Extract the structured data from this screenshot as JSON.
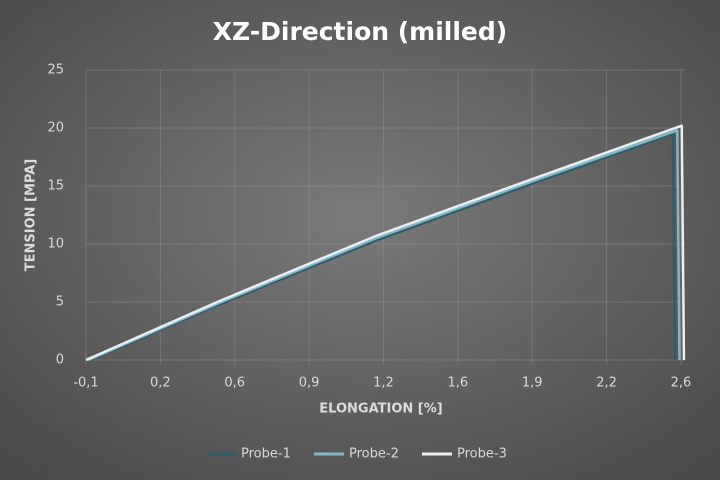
{
  "chart_data": {
    "type": "line",
    "title": "XZ-Direction (milled)",
    "x_label": "ELONGATION [%]",
    "y_label": "TENSION [MPA]",
    "xlim": [
      -0.1,
      2.5667
    ],
    "ylim": [
      0,
      25
    ],
    "xticks": [
      {
        "value": -0.1,
        "label": "-0,1"
      },
      {
        "value": 0.2333,
        "label": "0,2"
      },
      {
        "value": 0.5667,
        "label": "0,6"
      },
      {
        "value": 0.9,
        "label": "0,9"
      },
      {
        "value": 1.2333,
        "label": "1,2"
      },
      {
        "value": 1.5667,
        "label": "1,6"
      },
      {
        "value": 1.9,
        "label": "1,9"
      },
      {
        "value": 2.2333,
        "label": "2,2"
      },
      {
        "value": 2.5667,
        "label": "2,6"
      }
    ],
    "yticks": [
      0,
      5,
      10,
      15,
      20,
      25
    ],
    "grid": true,
    "legend": "bottom",
    "series": [
      {
        "name": "Probe-1",
        "color": "#2f5d6e",
        "x": [
          -0.08,
          0.5,
          1.2,
          1.9,
          2.53,
          2.54
        ],
        "values": [
          0,
          4.8,
          10.3,
          15.2,
          19.5,
          0
        ]
      },
      {
        "name": "Probe-2",
        "color": "#7fb9ca",
        "x": [
          -0.09,
          0.5,
          1.2,
          1.9,
          2.55,
          2.56
        ],
        "values": [
          0,
          4.95,
          10.5,
          15.4,
          19.8,
          0
        ]
      },
      {
        "name": "Probe-3",
        "color": "#ececec",
        "x": [
          -0.1,
          0.5,
          1.2,
          1.9,
          2.57,
          2.58
        ],
        "values": [
          0,
          5.1,
          10.7,
          15.6,
          20.2,
          0
        ]
      }
    ]
  }
}
